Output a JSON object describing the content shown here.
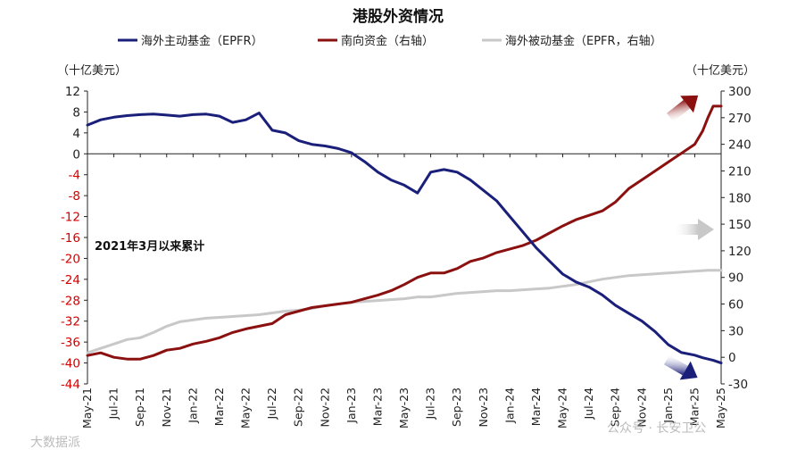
{
  "chart_data": {
    "type": "line",
    "title": "港股外资情况",
    "left_unit": "（十亿美元）",
    "right_unit": "（十亿美元）",
    "annotation": "2021年3月以来累计",
    "left_axis": {
      "min": -44,
      "max": 12,
      "step": 4,
      "ticks": [
        "12",
        "8",
        "4",
        "0",
        "-4",
        "-8",
        "-12",
        "-16",
        "-20",
        "-24",
        "-28",
        "-32",
        "-36",
        "-40",
        "-44"
      ]
    },
    "right_axis": {
      "min": -30,
      "max": 300,
      "step": 30,
      "ticks": [
        "300",
        "270",
        "240",
        "210",
        "180",
        "150",
        "120",
        "90",
        "60",
        "30",
        "0",
        "-30"
      ]
    },
    "x_labels": [
      "May-21",
      "Jul-21",
      "Sep-21",
      "Nov-21",
      "Jan-22",
      "Mar-22",
      "May-22",
      "Jul-22",
      "Sep-22",
      "Nov-22",
      "Jan-23",
      "Mar-23",
      "May-23",
      "Jul-23",
      "Sep-23",
      "Nov-23",
      "Jan-24",
      "Mar-24",
      "May-24",
      "Jul-24",
      "Sep-24",
      "Nov-24",
      "Jan-25",
      "Mar-25",
      "May-25"
    ],
    "series": [
      {
        "name": "海外主动基金（EPFR）",
        "axis": "left",
        "color": "#1a1f7a",
        "x": [
          0,
          0.5,
          1,
          1.5,
          2,
          2.5,
          3,
          3.5,
          4,
          4.5,
          5,
          5.5,
          6,
          6.5,
          7,
          7.5,
          8,
          8.5,
          9,
          9.5,
          10,
          10.5,
          11,
          11.5,
          12,
          12.5,
          13,
          13.5,
          14,
          14.5,
          15,
          15.5,
          16,
          16.5,
          17,
          17.5,
          18,
          18.5,
          19,
          19.5,
          20,
          20.5,
          21,
          21.5,
          22,
          22.5,
          23,
          23.3,
          23.7,
          24
        ],
        "values": [
          5.5,
          6.5,
          7.0,
          7.3,
          7.5,
          7.6,
          7.4,
          7.2,
          7.5,
          7.6,
          7.2,
          6.0,
          6.5,
          7.8,
          4.5,
          4.0,
          2.5,
          1.8,
          1.5,
          1.0,
          0.2,
          -1.5,
          -3.5,
          -5.0,
          -6.0,
          -7.5,
          -3.5,
          -3.0,
          -3.5,
          -5.0,
          -7.0,
          -9.0,
          -12.0,
          -15.0,
          -18.0,
          -20.5,
          -23.0,
          -24.5,
          -25.5,
          -27.0,
          -29.0,
          -30.5,
          -32.0,
          -34.0,
          -36.5,
          -38.0,
          -38.5,
          -39.0,
          -39.5,
          -40.0
        ]
      },
      {
        "name": "南向资金（右轴）",
        "axis": "right",
        "color": "#8b1010",
        "x": [
          0,
          0.5,
          1,
          1.5,
          2,
          2.5,
          3,
          3.5,
          4,
          4.5,
          5,
          5.5,
          6,
          6.5,
          7,
          7.5,
          8,
          8.5,
          9,
          9.5,
          10,
          10.5,
          11,
          11.5,
          12,
          12.5,
          13,
          13.5,
          14,
          14.5,
          15,
          15.5,
          16,
          16.5,
          17,
          17.5,
          18,
          18.5,
          19,
          19.5,
          20,
          20.5,
          21,
          21.5,
          22,
          22.5,
          23,
          23.3,
          23.5,
          23.7,
          24
        ],
        "values": [
          2,
          5,
          0,
          -2,
          -2,
          2,
          8,
          10,
          15,
          18,
          22,
          28,
          32,
          35,
          38,
          48,
          52,
          56,
          58,
          60,
          62,
          66,
          70,
          75,
          82,
          90,
          95,
          95,
          100,
          108,
          112,
          118,
          122,
          126,
          132,
          140,
          148,
          155,
          160,
          165,
          175,
          190,
          200,
          210,
          220,
          230,
          240,
          255,
          270,
          283,
          283
        ]
      },
      {
        "name": "海外被动基金（EPFR，右轴）",
        "axis": "right",
        "color": "#c8c8c8",
        "x": [
          0,
          0.5,
          1,
          1.5,
          2,
          2.5,
          3,
          3.5,
          4,
          4.5,
          5,
          5.5,
          6,
          6.5,
          7,
          7.5,
          8,
          8.5,
          9,
          9.5,
          10,
          10.5,
          11,
          11.5,
          12,
          12.5,
          13,
          13.5,
          14,
          14.5,
          15,
          15.5,
          16,
          16.5,
          17,
          17.5,
          18,
          18.5,
          19,
          19.5,
          20,
          20.5,
          21,
          21.5,
          22,
          22.5,
          23,
          23.5,
          24
        ],
        "values": [
          5,
          10,
          15,
          20,
          22,
          28,
          35,
          40,
          42,
          44,
          45,
          46,
          47,
          48,
          50,
          52,
          53,
          55,
          58,
          60,
          62,
          63,
          64,
          65,
          66,
          68,
          68,
          70,
          72,
          73,
          74,
          75,
          75,
          76,
          77,
          78,
          80,
          82,
          85,
          88,
          90,
          92,
          93,
          94,
          95,
          96,
          97,
          98,
          98
        ]
      }
    ]
  },
  "watermarks": [
    "大数据派",
    "公众号 · 长安卫公"
  ]
}
